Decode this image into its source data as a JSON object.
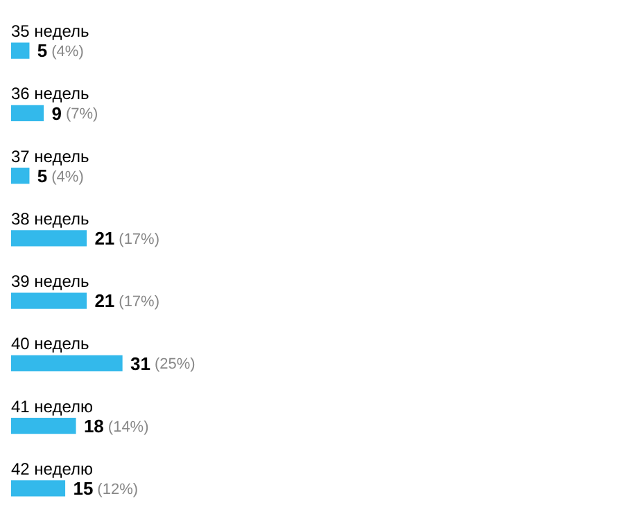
{
  "chart_data": {
    "type": "bar",
    "orientation": "horizontal",
    "categories": [
      "35 недель",
      "36 недель",
      "37 недель",
      "38 недель",
      "39 недель",
      "40 недель",
      "41 неделю",
      "42 неделю"
    ],
    "values": [
      5,
      9,
      5,
      21,
      21,
      31,
      18,
      15
    ],
    "value_labels": [
      "5 (4%)",
      "9 (7%)",
      "5 (4%)",
      "21 (17%)",
      "21 (17%)",
      "31 (25%)",
      "18 (14%)",
      "15 (12%)"
    ],
    "color": "#33b9eb",
    "legend": false
  }
}
